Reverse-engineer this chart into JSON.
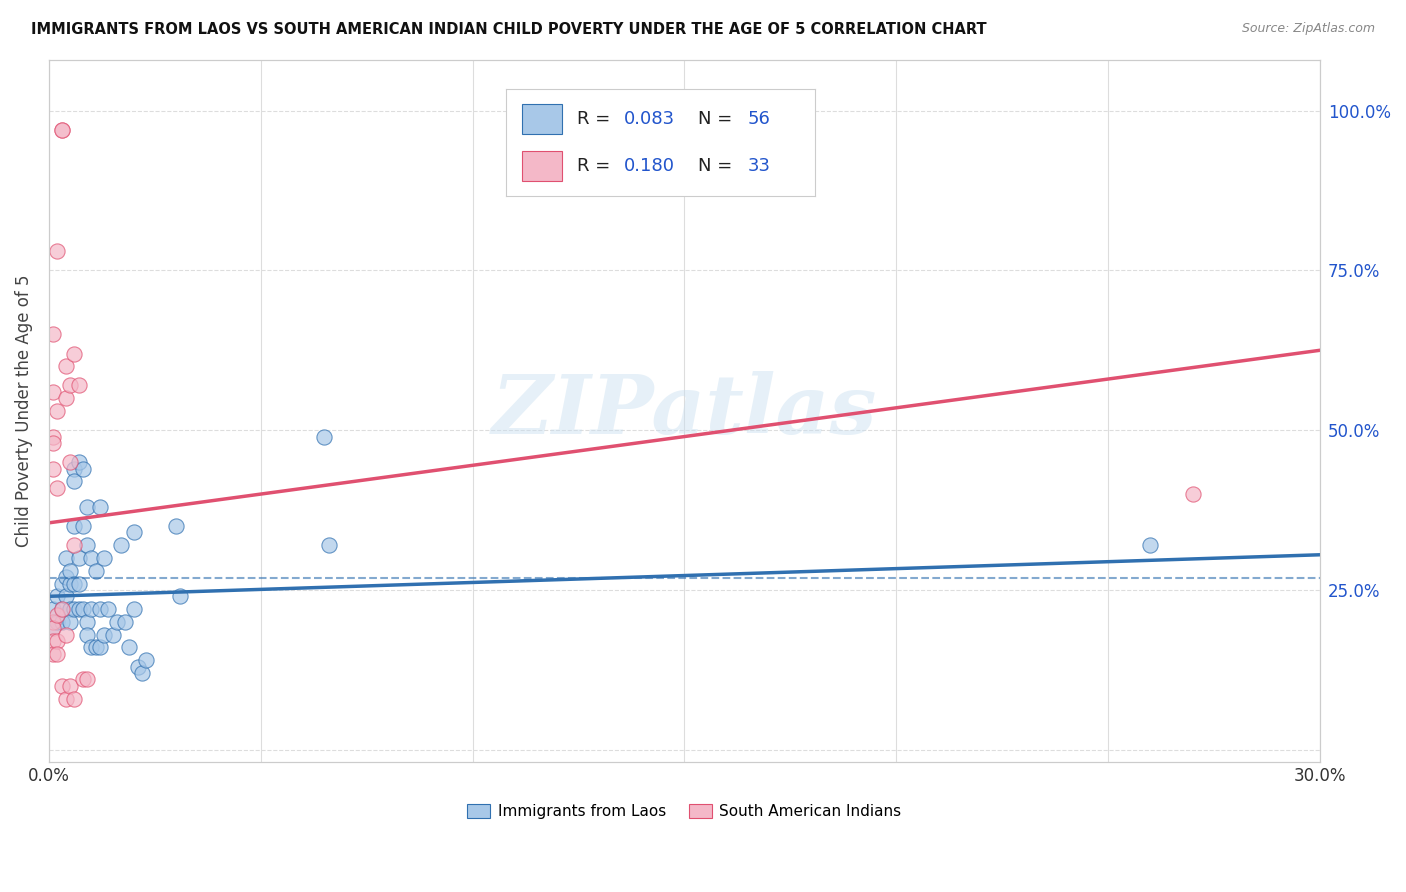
{
  "title": "IMMIGRANTS FROM LAOS VS SOUTH AMERICAN INDIAN CHILD POVERTY UNDER THE AGE OF 5 CORRELATION CHART",
  "source": "Source: ZipAtlas.com",
  "ylabel": "Child Poverty Under the Age of 5",
  "xlim": [
    0.0,
    0.3
  ],
  "ylim": [
    -0.02,
    1.08
  ],
  "watermark_text": "ZIPatlas",
  "blue_color": "#a8c8e8",
  "pink_color": "#f4b8c8",
  "blue_line_color": "#3070b0",
  "pink_line_color": "#e05070",
  "text_blue": "#2255cc",
  "grid_color": "#dddddd",
  "blue_scatter": [
    [
      0.001,
      0.22
    ],
    [
      0.001,
      0.19
    ],
    [
      0.002,
      0.2
    ],
    [
      0.002,
      0.24
    ],
    [
      0.003,
      0.2
    ],
    [
      0.003,
      0.22
    ],
    [
      0.003,
      0.26
    ],
    [
      0.004,
      0.27
    ],
    [
      0.004,
      0.3
    ],
    [
      0.004,
      0.24
    ],
    [
      0.005,
      0.26
    ],
    [
      0.005,
      0.28
    ],
    [
      0.005,
      0.22
    ],
    [
      0.005,
      0.2
    ],
    [
      0.006,
      0.44
    ],
    [
      0.006,
      0.42
    ],
    [
      0.006,
      0.35
    ],
    [
      0.006,
      0.26
    ],
    [
      0.006,
      0.22
    ],
    [
      0.007,
      0.45
    ],
    [
      0.007,
      0.3
    ],
    [
      0.007,
      0.26
    ],
    [
      0.007,
      0.22
    ],
    [
      0.008,
      0.44
    ],
    [
      0.008,
      0.35
    ],
    [
      0.008,
      0.22
    ],
    [
      0.009,
      0.38
    ],
    [
      0.009,
      0.32
    ],
    [
      0.009,
      0.2
    ],
    [
      0.009,
      0.18
    ],
    [
      0.01,
      0.3
    ],
    [
      0.01,
      0.22
    ],
    [
      0.01,
      0.16
    ],
    [
      0.011,
      0.28
    ],
    [
      0.011,
      0.16
    ],
    [
      0.012,
      0.38
    ],
    [
      0.012,
      0.22
    ],
    [
      0.012,
      0.16
    ],
    [
      0.013,
      0.3
    ],
    [
      0.013,
      0.18
    ],
    [
      0.014,
      0.22
    ],
    [
      0.015,
      0.18
    ],
    [
      0.016,
      0.2
    ],
    [
      0.017,
      0.32
    ],
    [
      0.018,
      0.2
    ],
    [
      0.019,
      0.16
    ],
    [
      0.02,
      0.34
    ],
    [
      0.02,
      0.22
    ],
    [
      0.021,
      0.13
    ],
    [
      0.022,
      0.12
    ],
    [
      0.023,
      0.14
    ],
    [
      0.03,
      0.35
    ],
    [
      0.031,
      0.24
    ],
    [
      0.065,
      0.49
    ],
    [
      0.066,
      0.32
    ],
    [
      0.26,
      0.32
    ]
  ],
  "pink_scatter": [
    [
      0.001,
      0.65
    ],
    [
      0.001,
      0.56
    ],
    [
      0.001,
      0.49
    ],
    [
      0.001,
      0.48
    ],
    [
      0.001,
      0.44
    ],
    [
      0.001,
      0.2
    ],
    [
      0.001,
      0.19
    ],
    [
      0.001,
      0.17
    ],
    [
      0.001,
      0.15
    ],
    [
      0.002,
      0.78
    ],
    [
      0.002,
      0.53
    ],
    [
      0.002,
      0.41
    ],
    [
      0.002,
      0.21
    ],
    [
      0.002,
      0.17
    ],
    [
      0.002,
      0.15
    ],
    [
      0.003,
      0.97
    ],
    [
      0.003,
      0.97
    ],
    [
      0.003,
      0.22
    ],
    [
      0.003,
      0.1
    ],
    [
      0.004,
      0.6
    ],
    [
      0.004,
      0.55
    ],
    [
      0.004,
      0.18
    ],
    [
      0.004,
      0.08
    ],
    [
      0.005,
      0.57
    ],
    [
      0.005,
      0.45
    ],
    [
      0.005,
      0.1
    ],
    [
      0.006,
      0.62
    ],
    [
      0.006,
      0.32
    ],
    [
      0.006,
      0.08
    ],
    [
      0.007,
      0.57
    ],
    [
      0.008,
      0.11
    ],
    [
      0.009,
      0.11
    ],
    [
      0.27,
      0.4
    ]
  ],
  "blue_line_x": [
    0.0,
    0.3
  ],
  "blue_line_y": [
    0.24,
    0.305
  ],
  "pink_line_x": [
    0.0,
    0.3
  ],
  "pink_line_y": [
    0.355,
    0.625
  ],
  "dash_line_x": [
    0.0,
    0.3
  ],
  "dash_line_y": [
    0.268,
    0.268
  ],
  "background_color": "#ffffff"
}
